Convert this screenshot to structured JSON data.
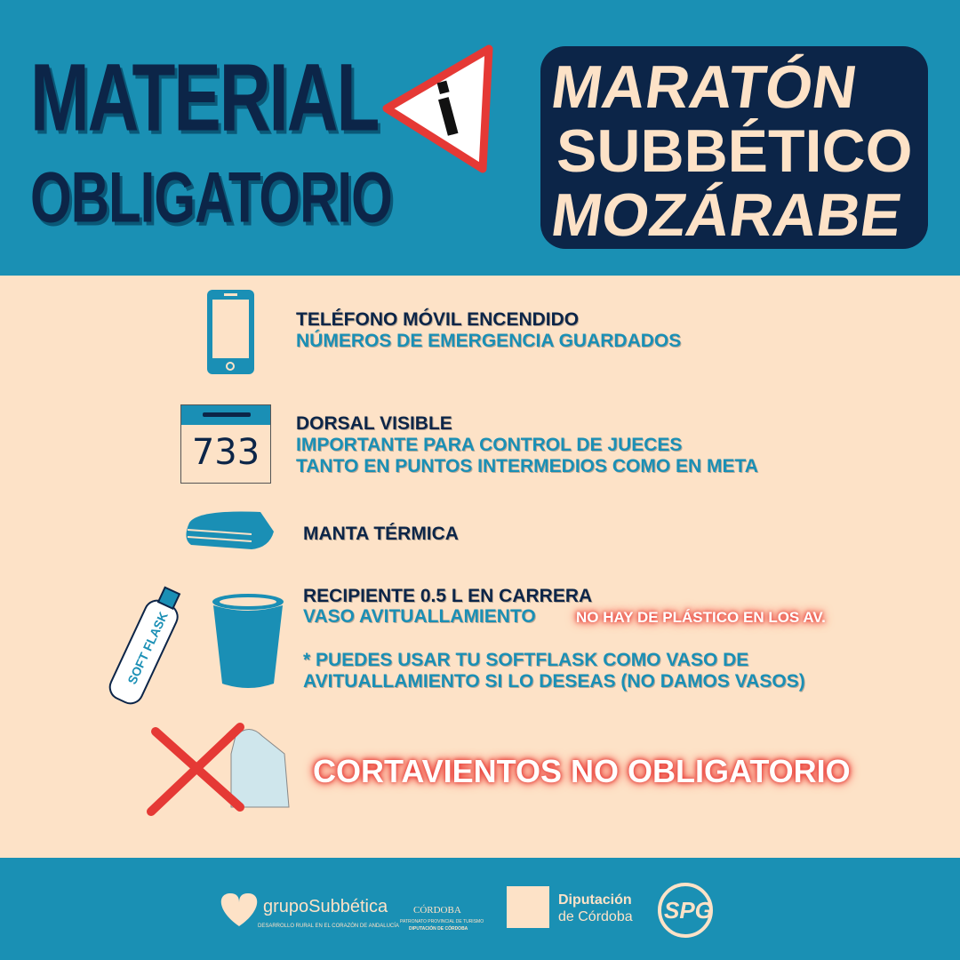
{
  "header": {
    "title_line1": "MATERIAL",
    "title_line2": "OBLIGATORIO",
    "event_lines": [
      "MARATÓN",
      "SUBBÉTICO",
      "MOZÁRABE"
    ],
    "colors": {
      "background": "#1a90b4",
      "navy": "#0c2548",
      "cream": "#fde2c7",
      "warning_red": "#e53935"
    }
  },
  "items": [
    {
      "icon": "smartphone-icon",
      "lines": [
        "TELÉFONO MÓVIL ENCENDIDO",
        "NÚMEROS DE EMERGENCIA GUARDADOS"
      ]
    },
    {
      "icon": "race-bib-icon",
      "bib_number": "733",
      "lines": [
        "DORSAL VISIBLE",
        "IMPORTANTE PARA CONTROL DE JUECES",
        "TANTO EN PUNTOS INTERMEDIOS COMO EN META"
      ]
    },
    {
      "icon": "thermal-blanket-icon",
      "lines": [
        "MANTA TÉRMICA"
      ]
    },
    {
      "icon": "cup-icon",
      "flask_label": "SOFT FLASK",
      "lines": [
        "RECIPIENTE 0.5 L EN CARRERA",
        "VASO AVITUALLAMIENTO"
      ],
      "note": "NO HAY DE PLÁSTICO EN LOS AV.",
      "footnote": [
        "* PUEDES USAR TU SOFTFLASK COMO VASO DE",
        "AVITUALLAMIENTO SI LO DESEAS (NO DAMOS VASOS)"
      ]
    },
    {
      "icon": "crossed-jacket-icon",
      "lines": [
        "CORTAVIENTOS NO OBLIGATORIO"
      ]
    }
  ],
  "footer": {
    "logos": [
      {
        "name": "grupoSubbética",
        "tagline": "DESARROLLO RURAL EN EL CORAZÓN DE ANDALUCÍA"
      },
      {
        "name": "CÓRDOBA",
        "tagline1": "PATRONATO PROVINCIAL DE TURISMO",
        "tagline2": "DIPUTACIÓN DE CÓRDOBA"
      },
      {
        "name1": "Diputación",
        "name2": "de Córdoba"
      },
      {
        "name": "SPG"
      }
    ]
  }
}
